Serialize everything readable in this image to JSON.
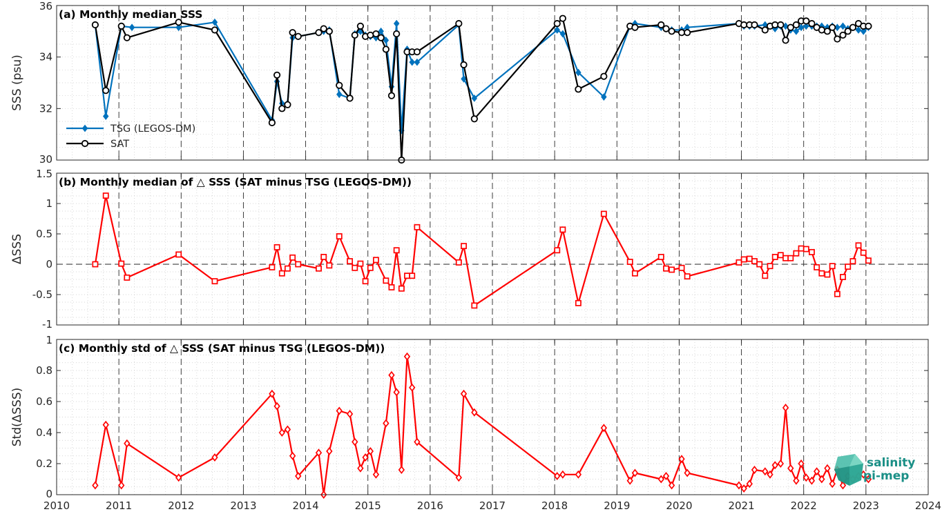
{
  "chart_data": [
    {
      "type": "line",
      "title": "(a) Monthly median SSS",
      "ylabel": "SSS (psu)",
      "xlabel": "",
      "xlim": [
        2010,
        2024
      ],
      "ylim": [
        30,
        36
      ],
      "yticks": [
        "30",
        "32",
        "34",
        "36"
      ],
      "grid": true,
      "legend_position": "left",
      "series": [
        {
          "name": "TSG (LEGOS-DM)",
          "color": "#0072BD",
          "marker": "diamond",
          "x": [
            2010.62,
            2010.79,
            2011.04,
            2011.21,
            2011.96,
            2012.54,
            2013.46,
            2013.54,
            2013.62,
            2013.71,
            2013.79,
            2013.88,
            2014.21,
            2014.29,
            2014.38,
            2014.54,
            2014.71,
            2014.79,
            2014.88,
            2014.96,
            2015.04,
            2015.13,
            2015.21,
            2015.29,
            2015.38,
            2015.46,
            2015.54,
            2015.63,
            2015.71,
            2015.79,
            2016.46,
            2016.54,
            2016.71,
            2018.04,
            2018.13,
            2018.38,
            2018.79,
            2019.21,
            2019.29,
            2019.71,
            2019.79,
            2019.88,
            2020.04,
            2020.13,
            2020.96,
            2021.04,
            2021.13,
            2021.21,
            2021.38,
            2021.46,
            2021.54,
            2021.63,
            2021.71,
            2021.79,
            2021.88,
            2021.96,
            2022.04,
            2022.13,
            2022.21,
            2022.29,
            2022.38,
            2022.46,
            2022.54,
            2022.63,
            2022.71,
            2022.79,
            2022.88,
            2022.96,
            2023.04
          ],
          "values": [
            35.25,
            31.7,
            35.2,
            35.15,
            35.15,
            35.35,
            31.55,
            33.05,
            32.2,
            32.2,
            34.75,
            34.8,
            34.95,
            35.0,
            35.05,
            32.55,
            32.4,
            34.9,
            35.0,
            34.85,
            34.8,
            34.75,
            35.0,
            34.65,
            32.85,
            35.3,
            31.15,
            34.3,
            33.8,
            33.8,
            35.25,
            33.15,
            32.4,
            35.05,
            34.9,
            33.4,
            32.45,
            35.2,
            35.3,
            35.15,
            35.1,
            35.05,
            35.05,
            35.15,
            35.3,
            35.2,
            35.2,
            35.2,
            35.25,
            35.2,
            35.1,
            35.2,
            35.2,
            35.05,
            35.0,
            35.15,
            35.2,
            35.2,
            35.2,
            35.2,
            35.15,
            35.2,
            35.15,
            35.2,
            35.1,
            35.15,
            35.05,
            35.0,
            35.15
          ]
        },
        {
          "name": "SAT",
          "color": "#000000",
          "marker": "circle",
          "x": [
            2010.62,
            2010.79,
            2011.04,
            2011.13,
            2011.96,
            2012.54,
            2013.46,
            2013.54,
            2013.62,
            2013.71,
            2013.79,
            2013.88,
            2014.21,
            2014.29,
            2014.38,
            2014.54,
            2014.71,
            2014.79,
            2014.88,
            2014.96,
            2015.04,
            2015.13,
            2015.21,
            2015.29,
            2015.38,
            2015.46,
            2015.54,
            2015.63,
            2015.71,
            2015.79,
            2016.46,
            2016.54,
            2016.71,
            2018.04,
            2018.13,
            2018.38,
            2018.79,
            2019.21,
            2019.29,
            2019.71,
            2019.79,
            2019.88,
            2020.04,
            2020.13,
            2020.96,
            2021.04,
            2021.13,
            2021.21,
            2021.38,
            2021.46,
            2021.54,
            2021.63,
            2021.71,
            2021.79,
            2021.88,
            2021.96,
            2022.04,
            2022.13,
            2022.21,
            2022.29,
            2022.38,
            2022.46,
            2022.54,
            2022.63,
            2022.71,
            2022.79,
            2022.88,
            2022.96,
            2023.04
          ],
          "values": [
            35.25,
            32.7,
            35.2,
            34.75,
            35.35,
            35.05,
            31.45,
            33.3,
            32.0,
            32.15,
            34.95,
            34.8,
            34.95,
            35.1,
            35.0,
            32.9,
            32.4,
            34.85,
            35.2,
            34.8,
            34.85,
            34.9,
            34.75,
            34.3,
            32.5,
            34.9,
            30.0,
            34.2,
            34.2,
            34.2,
            35.3,
            33.7,
            31.6,
            35.3,
            35.5,
            32.75,
            33.25,
            35.2,
            35.15,
            35.25,
            35.1,
            35.0,
            34.95,
            34.95,
            35.3,
            35.25,
            35.25,
            35.25,
            35.05,
            35.2,
            35.25,
            35.25,
            34.65,
            35.15,
            35.25,
            35.4,
            35.4,
            35.3,
            35.15,
            35.05,
            35.0,
            35.15,
            34.7,
            34.85,
            35.0,
            35.15,
            35.3,
            35.2,
            35.2
          ]
        }
      ]
    },
    {
      "type": "line",
      "title": "(b) Monthly median of △ SSS (SAT minus TSG (LEGOS-DM))",
      "ylabel": "ΔSSS",
      "xlabel": "",
      "xlim": [
        2010,
        2024
      ],
      "ylim": [
        -1,
        1.5
      ],
      "yticks": [
        "-1",
        "-0.5",
        "0",
        "0.5",
        "1",
        "1.5"
      ],
      "grid": true,
      "zero_line": true,
      "series": [
        {
          "color": "#FF0000",
          "marker": "square",
          "x": [
            2010.62,
            2010.79,
            2011.04,
            2011.13,
            2011.96,
            2012.54,
            2013.46,
            2013.54,
            2013.62,
            2013.71,
            2013.79,
            2013.88,
            2014.21,
            2014.29,
            2014.38,
            2014.54,
            2014.71,
            2014.79,
            2014.88,
            2014.96,
            2015.04,
            2015.13,
            2015.29,
            2015.38,
            2015.46,
            2015.54,
            2015.63,
            2015.71,
            2015.79,
            2016.46,
            2016.54,
            2016.71,
            2018.04,
            2018.13,
            2018.38,
            2018.79,
            2019.21,
            2019.29,
            2019.71,
            2019.79,
            2019.88,
            2020.04,
            2020.13,
            2020.96,
            2021.04,
            2021.13,
            2021.21,
            2021.29,
            2021.38,
            2021.46,
            2021.54,
            2021.63,
            2021.71,
            2021.79,
            2021.88,
            2021.96,
            2022.04,
            2022.13,
            2022.21,
            2022.29,
            2022.38,
            2022.46,
            2022.54,
            2022.63,
            2022.71,
            2022.79,
            2022.88,
            2022.96,
            2023.04
          ],
          "values": [
            0.0,
            1.13,
            0.01,
            -0.22,
            0.16,
            -0.28,
            -0.05,
            0.28,
            -0.15,
            -0.07,
            0.11,
            0.0,
            -0.07,
            0.12,
            -0.02,
            0.46,
            0.05,
            -0.06,
            0.01,
            -0.28,
            -0.06,
            0.07,
            -0.27,
            -0.38,
            0.23,
            -0.4,
            -0.19,
            -0.19,
            0.61,
            0.03,
            0.3,
            -0.68,
            0.23,
            0.57,
            -0.64,
            0.83,
            0.04,
            -0.15,
            0.12,
            -0.07,
            -0.09,
            -0.06,
            -0.2,
            0.03,
            0.08,
            0.09,
            0.05,
            0.0,
            -0.19,
            -0.03,
            0.12,
            0.15,
            0.1,
            0.1,
            0.18,
            0.26,
            0.25,
            0.2,
            -0.05,
            -0.15,
            -0.17,
            -0.03,
            -0.49,
            -0.21,
            -0.04,
            0.05,
            0.31,
            0.19,
            0.06
          ]
        }
      ]
    },
    {
      "type": "line",
      "title": "(c) Monthly std of △ SSS (SAT minus TSG (LEGOS-DM))",
      "ylabel": "Std(ΔSSS)",
      "xlabel": "",
      "xlim": [
        2010,
        2024
      ],
      "ylim": [
        0,
        1
      ],
      "yticks": [
        "0",
        "0.2",
        "0.4",
        "0.6",
        "0.8",
        "1"
      ],
      "xticks": [
        "2010",
        "2011",
        "2012",
        "2013",
        "2014",
        "2015",
        "2016",
        "2017",
        "2018",
        "2019",
        "2020",
        "2021",
        "2022",
        "2023",
        "2024"
      ],
      "grid": true,
      "series": [
        {
          "color": "#FF0000",
          "marker": "diamond",
          "x": [
            2010.62,
            2010.79,
            2011.04,
            2011.13,
            2011.96,
            2012.54,
            2013.46,
            2013.54,
            2013.62,
            2013.71,
            2013.79,
            2013.88,
            2014.21,
            2014.29,
            2014.38,
            2014.54,
            2014.71,
            2014.79,
            2014.88,
            2014.96,
            2015.04,
            2015.13,
            2015.29,
            2015.38,
            2015.46,
            2015.54,
            2015.63,
            2015.71,
            2015.79,
            2016.46,
            2016.54,
            2016.71,
            2018.04,
            2018.13,
            2018.38,
            2018.79,
            2019.21,
            2019.29,
            2019.71,
            2019.79,
            2019.88,
            2020.04,
            2020.13,
            2020.96,
            2021.04,
            2021.13,
            2021.21,
            2021.38,
            2021.46,
            2021.54,
            2021.63,
            2021.71,
            2021.79,
            2021.88,
            2021.96,
            2022.04,
            2022.13,
            2022.21,
            2022.29,
            2022.38,
            2022.46,
            2022.54,
            2022.63,
            2022.71,
            2022.79,
            2022.88,
            2022.96,
            2023.04
          ],
          "values": [
            0.06,
            0.45,
            0.06,
            0.33,
            0.11,
            0.24,
            0.65,
            0.57,
            0.4,
            0.42,
            0.25,
            0.12,
            0.27,
            0.0,
            0.28,
            0.54,
            0.52,
            0.34,
            0.17,
            0.24,
            0.28,
            0.13,
            0.46,
            0.77,
            0.66,
            0.16,
            0.89,
            0.69,
            0.34,
            0.11,
            0.65,
            0.53,
            0.12,
            0.13,
            0.13,
            0.43,
            0.09,
            0.14,
            0.1,
            0.12,
            0.06,
            0.23,
            0.14,
            0.06,
            0.04,
            0.07,
            0.16,
            0.15,
            0.13,
            0.19,
            0.2,
            0.56,
            0.17,
            0.09,
            0.2,
            0.11,
            0.09,
            0.15,
            0.1,
            0.17,
            0.07,
            0.16,
            0.06,
            0.12,
            0.1,
            0.12,
            0.13,
            0.1
          ]
        }
      ]
    }
  ],
  "logo": {
    "line1": "salinity",
    "line2": "pi-mep"
  }
}
